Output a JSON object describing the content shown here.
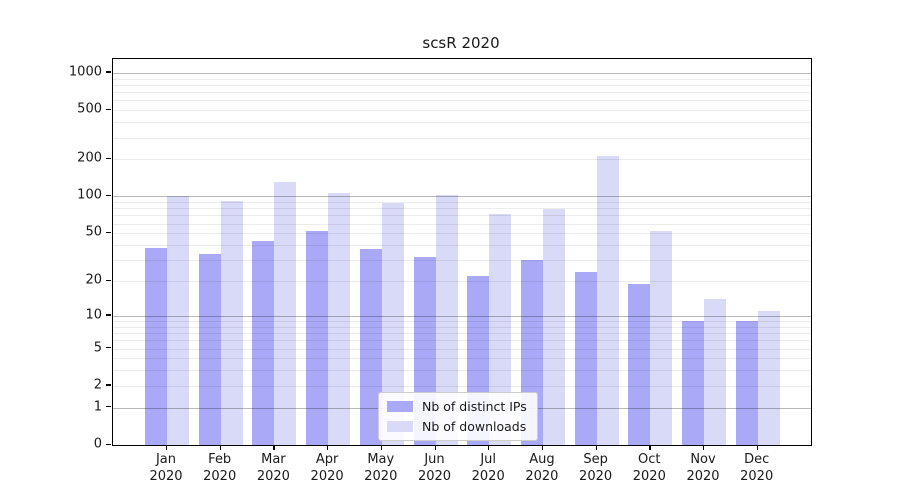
{
  "title": "scsR 2020",
  "legend": {
    "items": [
      {
        "label": "Nb of distinct IPs"
      },
      {
        "label": "Nb of downloads"
      }
    ]
  },
  "chart_data": {
    "type": "bar",
    "title": "scsR 2020",
    "categories": [
      "Jan",
      "Feb",
      "Mar",
      "Apr",
      "May",
      "Jun",
      "Jul",
      "Aug",
      "Sep",
      "Oct",
      "Nov",
      "Dec"
    ],
    "category_year": "2020",
    "series": [
      {
        "name": "Nb of distinct IPs",
        "color": "#a9a9f8",
        "values": [
          38,
          34,
          43,
          52,
          37,
          32,
          22,
          30,
          24,
          19,
          9,
          9
        ]
      },
      {
        "name": "Nb of downloads",
        "color": "#d9d9f8",
        "values": [
          100,
          91,
          132,
          107,
          88,
          103,
          72,
          79,
          212,
          52,
          14,
          11
        ]
      }
    ],
    "xlabel": "",
    "ylabel": "",
    "y_scale": "log10(1+x)",
    "y_ticks": [
      0,
      1,
      2,
      5,
      10,
      20,
      50,
      100,
      200,
      500,
      1000
    ],
    "y_major_gridlines": [
      1,
      10,
      100,
      1000
    ],
    "y_minor_gridlines": [
      2,
      3,
      4,
      5,
      6,
      7,
      8,
      9,
      20,
      30,
      40,
      50,
      60,
      70,
      80,
      90,
      200,
      300,
      400,
      500,
      600,
      700,
      800,
      900
    ],
    "ylim": [
      0,
      1280
    ],
    "grid": true,
    "legend_position": "lower-center"
  },
  "colors": {
    "bar_distinct_ips": "#a9a9f8",
    "bar_downloads": "#d9d9f8",
    "axis": "#000000",
    "text": "#1a1a1a",
    "major_grid": "#bababa",
    "minor_grid": "#ececec",
    "legend_border": "#cccccc"
  }
}
